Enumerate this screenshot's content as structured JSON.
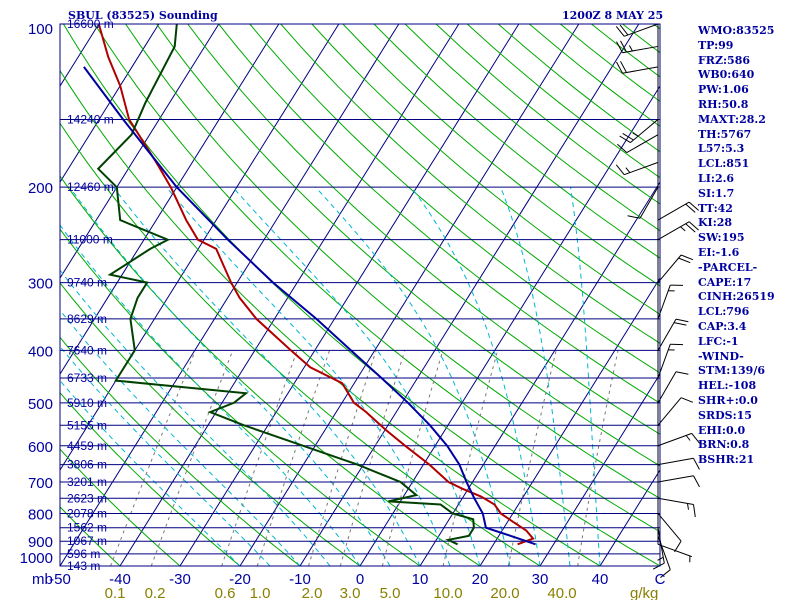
{
  "chart_data": {
    "type": "skew-t log-p sounding",
    "title": "SBUL (83525) Sounding",
    "valid_time": "1200Z  8 MAY 25",
    "y_axis": {
      "label": "mb",
      "scale": "log",
      "range_hpa": [
        1000,
        100
      ],
      "pressure_ticks": [
        100,
        200,
        300,
        400,
        500,
        600,
        700,
        800,
        900,
        1000
      ]
    },
    "x_axis": {
      "unit": "C",
      "range_c_at_1000hpa": [
        -50,
        50
      ],
      "temperature_ticks": [
        -50,
        -40,
        -30,
        -20,
        -10,
        0,
        10,
        20,
        30,
        40
      ],
      "mixing_ratio_unit": "g/kg",
      "mixing_ratio_ticks": [
        "0.1",
        "0.2",
        "0.6",
        "1.0",
        "2.0",
        "3.0",
        "5.0",
        "10.0",
        "20.0",
        "40.0"
      ]
    },
    "height_labels": [
      {
        "p": 100,
        "text": "16600 m"
      },
      {
        "p": 150,
        "text": "14240 m"
      },
      {
        "p": 200,
        "text": "12460 m"
      },
      {
        "p": 250,
        "text": "11000 m"
      },
      {
        "p": 300,
        "text": "9740 m"
      },
      {
        "p": 350,
        "text": "8629 m"
      },
      {
        "p": 400,
        "text": "7640 m"
      },
      {
        "p": 450,
        "text": "6733 m"
      },
      {
        "p": 500,
        "text": "5910 m"
      },
      {
        "p": 550,
        "text": "5155 m"
      },
      {
        "p": 600,
        "text": "4459 m"
      },
      {
        "p": 650,
        "text": "3806 m"
      },
      {
        "p": 700,
        "text": "3201 m"
      },
      {
        "p": 750,
        "text": "2623 m"
      },
      {
        "p": 800,
        "text": "2078 m"
      },
      {
        "p": 850,
        "text": "1562 m"
      },
      {
        "p": 900,
        "text": "1067 m"
      },
      {
        "p": 950,
        "text": "596 m"
      },
      {
        "p": 1000,
        "text": "143 m"
      }
    ],
    "series": [
      {
        "color": "#b00000",
        "points": [
          {
            "p": 912,
            "t": 24
          },
          {
            "p": 890,
            "t": 26
          },
          {
            "p": 860,
            "t": 24
          },
          {
            "p": 830,
            "t": 21
          },
          {
            "p": 800,
            "t": 18
          },
          {
            "p": 770,
            "t": 16
          },
          {
            "p": 745,
            "t": 13
          },
          {
            "p": 720,
            "t": 9
          },
          {
            "p": 700,
            "t": 6
          },
          {
            "p": 650,
            "t": 1
          },
          {
            "p": 600,
            "t": -5
          },
          {
            "p": 560,
            "t": -10
          },
          {
            "p": 520,
            "t": -15
          },
          {
            "p": 500,
            "t": -18
          },
          {
            "p": 460,
            "t": -22
          },
          {
            "p": 430,
            "t": -29
          },
          {
            "p": 400,
            "t": -34
          },
          {
            "p": 350,
            "t": -43
          },
          {
            "p": 320,
            "t": -48
          },
          {
            "p": 300,
            "t": -51
          },
          {
            "p": 260,
            "t": -57
          },
          {
            "p": 250,
            "t": -61
          },
          {
            "p": 230,
            "t": -65
          },
          {
            "p": 200,
            "t": -71
          },
          {
            "p": 180,
            "t": -76
          },
          {
            "p": 150,
            "t": -85
          },
          {
            "p": 130,
            "t": -90
          },
          {
            "p": 115,
            "t": -95
          },
          {
            "p": 100,
            "t": -100
          }
        ]
      },
      {
        "color": "#004000",
        "points": [
          {
            "p": 912,
            "t": 14
          },
          {
            "p": 895,
            "t": 12
          },
          {
            "p": 880,
            "t": 15
          },
          {
            "p": 850,
            "t": 15
          },
          {
            "p": 820,
            "t": 14
          },
          {
            "p": 800,
            "t": 10
          },
          {
            "p": 770,
            "t": 7
          },
          {
            "p": 760,
            "t": -2
          },
          {
            "p": 740,
            "t": 2
          },
          {
            "p": 700,
            "t": -2
          },
          {
            "p": 650,
            "t": -11
          },
          {
            "p": 600,
            "t": -22
          },
          {
            "p": 550,
            "t": -34
          },
          {
            "p": 520,
            "t": -41
          },
          {
            "p": 500,
            "t": -38
          },
          {
            "p": 480,
            "t": -37
          },
          {
            "p": 455,
            "t": -60
          },
          {
            "p": 400,
            "t": -60
          },
          {
            "p": 350,
            "t": -64
          },
          {
            "p": 320,
            "t": -65
          },
          {
            "p": 300,
            "t": -65
          },
          {
            "p": 290,
            "t": -72
          },
          {
            "p": 260,
            "t": -68
          },
          {
            "p": 250,
            "t": -66
          },
          {
            "p": 230,
            "t": -76
          },
          {
            "p": 200,
            "t": -80
          },
          {
            "p": 185,
            "t": -85
          },
          {
            "p": 160,
            "t": -83
          },
          {
            "p": 140,
            "t": -84
          },
          {
            "p": 110,
            "t": -85
          },
          {
            "p": 100,
            "t": -87
          }
        ]
      },
      {
        "color": "#0000a0",
        "points": [
          {
            "p": 912,
            "t": 27
          },
          {
            "p": 880,
            "t": 22
          },
          {
            "p": 850,
            "t": 17
          },
          {
            "p": 800,
            "t": 15
          },
          {
            "p": 750,
            "t": 12
          },
          {
            "p": 700,
            "t": 9
          },
          {
            "p": 650,
            "t": 6
          },
          {
            "p": 600,
            "t": 2
          },
          {
            "p": 550,
            "t": -3
          },
          {
            "p": 500,
            "t": -9
          },
          {
            "p": 450,
            "t": -16
          },
          {
            "p": 400,
            "t": -24
          },
          {
            "p": 350,
            "t": -33
          },
          {
            "p": 300,
            "t": -44
          },
          {
            "p": 250,
            "t": -56
          },
          {
            "p": 200,
            "t": -70
          },
          {
            "p": 150,
            "t": -86
          },
          {
            "p": 120,
            "t": -98
          }
        ]
      }
    ],
    "wind_barbs": [
      {
        "p": 912,
        "dir": 110,
        "spd": 5
      },
      {
        "p": 880,
        "dir": 160,
        "spd": 10
      },
      {
        "p": 850,
        "dir": 170,
        "spd": 15
      },
      {
        "p": 800,
        "dir": 140,
        "spd": 10
      },
      {
        "p": 750,
        "dir": 100,
        "spd": 15
      },
      {
        "p": 700,
        "dir": 80,
        "spd": 10
      },
      {
        "p": 650,
        "dir": 80,
        "spd": 10
      },
      {
        "p": 600,
        "dir": 70,
        "spd": 15
      },
      {
        "p": 550,
        "dir": 40,
        "spd": 10
      },
      {
        "p": 500,
        "dir": 30,
        "spd": 10
      },
      {
        "p": 450,
        "dir": 20,
        "spd": 15
      },
      {
        "p": 400,
        "dir": 30,
        "spd": 20
      },
      {
        "p": 350,
        "dir": 20,
        "spd": 15
      },
      {
        "p": 300,
        "dir": 40,
        "spd": 20
      },
      {
        "p": 250,
        "dir": 60,
        "spd": 25
      },
      {
        "p": 230,
        "dir": 60,
        "spd": 20
      },
      {
        "p": 200,
        "dir": 210,
        "spd": 10
      },
      {
        "p": 180,
        "dir": 250,
        "spd": 15
      },
      {
        "p": 160,
        "dir": 240,
        "spd": 10
      },
      {
        "p": 150,
        "dir": 230,
        "spd": 25
      },
      {
        "p": 120,
        "dir": 260,
        "spd": 20
      },
      {
        "p": 110,
        "dir": 260,
        "spd": 25
      },
      {
        "p": 100,
        "dir": 250,
        "spd": 20
      }
    ],
    "indices": [
      "WMO:83525",
      "TP:99",
      "FRZ:586",
      "WB0:640",
      "PW:1.06",
      "RH:50.8",
      "MAXT:28.2",
      "TH:5767",
      "L57:5.3",
      "LCL:851",
      "LI:2.6",
      "SI:1.7",
      "TT:42",
      "KI:28",
      "SW:195",
      "EI:-1.6",
      "-PARCEL-",
      "CAPE:17",
      "CINH:26519",
      "LCL:796",
      "CAP:3.4",
      "LFC:-1",
      "-WIND-",
      "STM:139/6",
      "HEL:-108",
      "SHR+:0.0",
      "SRDS:15",
      "EHI:0.0",
      "BRN:0.8",
      "BSHR:21"
    ],
    "colors": {
      "frame": "#000080",
      "isotherm": "#000080",
      "dry_adiabat": "#00aa00",
      "moist_adiabat": "#00b7d0",
      "mixing_ratio": "#7a7a7a",
      "axis_text": "#0000a0",
      "mixing_ratio_text": "#8a8000"
    }
  }
}
